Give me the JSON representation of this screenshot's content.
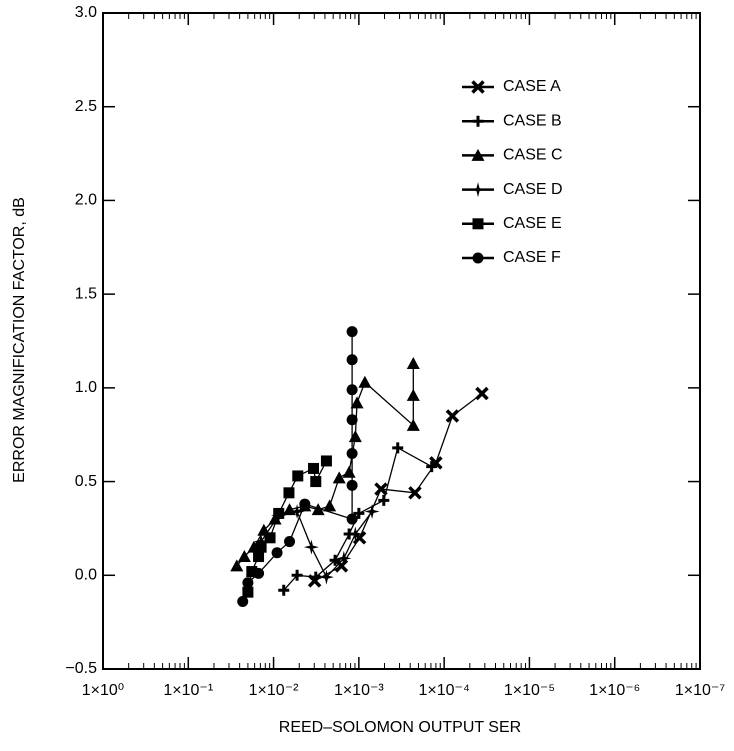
{
  "chart_data": {
    "type": "line",
    "xlabel": "REED–SOLOMON OUTPUT SER",
    "ylabel": "ERROR MAGNIFICATION FACTOR, dB",
    "xscale": "log",
    "xlim": [
      1,
      1e-07
    ],
    "xticks": [
      {
        "value": 1,
        "label": "1×10⁰"
      },
      {
        "value": 0.1,
        "label": "1×10⁻¹"
      },
      {
        "value": 0.01,
        "label": "1×10⁻²"
      },
      {
        "value": 0.001,
        "label": "1×10⁻³"
      },
      {
        "value": 0.0001,
        "label": "1×10⁻⁴"
      },
      {
        "value": 1e-05,
        "label": "1×10⁻⁵"
      },
      {
        "value": 1e-06,
        "label": "1×10⁻⁶"
      },
      {
        "value": 1e-07,
        "label": "1×10⁻⁷"
      }
    ],
    "ylim": [
      -0.5,
      3.0
    ],
    "yticks": [
      {
        "value": -0.5,
        "label": "−0.5"
      },
      {
        "value": 0,
        "label": "0.0"
      },
      {
        "value": 0.5,
        "label": "0.5"
      },
      {
        "value": 1,
        "label": "1.0"
      },
      {
        "value": 1.5,
        "label": "1.5"
      },
      {
        "value": 2,
        "label": "2.0"
      },
      {
        "value": 2.5,
        "label": "2.5"
      },
      {
        "value": 3,
        "label": "3.0"
      }
    ],
    "legend": "upper right",
    "series": [
      {
        "name": "CASE A",
        "color": "#000000",
        "marker": "x",
        "x": [
          0.0033,
          0.0016,
          0.00098,
          0.00055,
          0.00022,
          0.000125,
          8e-05,
          3.6e-05
        ],
        "values": [
          -0.03,
          0.05,
          0.2,
          0.46,
          0.44,
          0.6,
          0.85,
          0.97
        ]
      },
      {
        "name": "CASE B",
        "color": "#000000",
        "marker": "plus",
        "x": [
          0.0076,
          0.0053,
          0.0032,
          0.0019,
          0.0013,
          0.001,
          0.00051,
          0.00035,
          0.00014
        ],
        "values": [
          -0.08,
          0.0,
          -0.01,
          0.08,
          0.22,
          0.33,
          0.4,
          0.68,
          0.58
        ]
      },
      {
        "name": "CASE C",
        "color": "#000000",
        "marker": "triangle",
        "x": [
          0.027,
          0.022,
          0.017,
          0.013,
          0.0096,
          0.0065,
          0.0043,
          0.003,
          0.0022,
          0.0017,
          0.0013,
          0.0011,
          0.00105,
          0.00085,
          0.00023,
          0.00023,
          0.00023
        ],
        "values": [
          0.05,
          0.1,
          0.15,
          0.24,
          0.3,
          0.35,
          0.37,
          0.35,
          0.37,
          0.52,
          0.55,
          0.74,
          0.92,
          1.03,
          0.8,
          0.96,
          1.13
        ]
      },
      {
        "name": "CASE D",
        "color": "#000000",
        "marker": "star",
        "x": [
          0.014,
          0.0087,
          0.0053,
          0.0036,
          0.0024,
          0.0015,
          0.0011,
          0.0007
        ],
        "values": [
          0.18,
          0.32,
          0.34,
          0.15,
          -0.01,
          0.09,
          0.22,
          0.34
        ]
      },
      {
        "name": "CASE E",
        "color": "#000000",
        "marker": "square",
        "x": [
          0.02,
          0.018,
          0.015,
          0.014,
          0.011,
          0.0087,
          0.0066,
          0.0052,
          0.0034,
          0.0032,
          0.0024
        ],
        "values": [
          -0.09,
          0.02,
          0.1,
          0.15,
          0.2,
          0.33,
          0.44,
          0.53,
          0.57,
          0.5,
          0.61
        ]
      },
      {
        "name": "CASE F",
        "color": "#000000",
        "marker": "circle",
        "x": [
          0.023,
          0.02,
          0.015,
          0.0091,
          0.0065,
          0.0043,
          0.0012,
          0.0012,
          0.0012,
          0.0012,
          0.0012,
          0.0012,
          0.0012
        ],
        "values": [
          -0.14,
          -0.04,
          0.01,
          0.12,
          0.18,
          0.38,
          0.3,
          0.48,
          0.65,
          0.83,
          0.99,
          1.15,
          1.3
        ]
      }
    ]
  }
}
